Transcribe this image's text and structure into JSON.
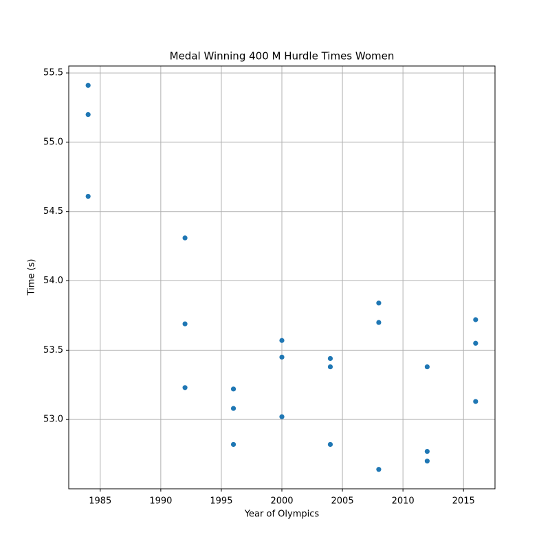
{
  "chart_data": {
    "type": "scatter",
    "title": "Medal Winning 400 M Hurdle Times Women",
    "x_label": "Year of Olympics",
    "y_label": "Time (s)",
    "x": [
      1984,
      1984,
      1984,
      1992,
      1992,
      1992,
      1996,
      1996,
      1996,
      2000,
      2000,
      2000,
      2004,
      2004,
      2004,
      2008,
      2008,
      2008,
      2012,
      2012,
      2012,
      2016,
      2016,
      2016
    ],
    "values": [
      55.41,
      55.2,
      54.61,
      54.31,
      53.69,
      53.23,
      53.22,
      53.08,
      52.82,
      53.57,
      53.45,
      53.02,
      53.44,
      53.38,
      52.82,
      53.84,
      53.7,
      52.64,
      53.38,
      52.77,
      52.7,
      53.72,
      53.55,
      53.13
    ],
    "color": "#1f77b4",
    "xlim": [
      1982.4,
      2017.6
    ],
    "xticks": [
      1985,
      1990,
      1995,
      2000,
      2005,
      2010,
      2015
    ],
    "ylim": [
      52.5,
      55.55
    ],
    "yticks": [
      {
        "value": 53,
        "label": "53.0"
      },
      53.5,
      {
        "value": 54,
        "label": "54.0"
      },
      54.5,
      {
        "value": 55,
        "label": "55.0"
      },
      55.5
    ],
    "grid": true
  }
}
